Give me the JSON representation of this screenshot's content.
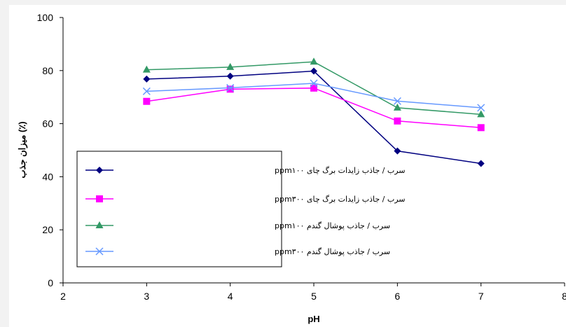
{
  "chart_data": {
    "type": "line",
    "title": "",
    "xlabel": "pH",
    "ylabel": "میزان جذب (٪)",
    "xlim": [
      2,
      8
    ],
    "ylim": [
      0,
      100
    ],
    "x_ticks": [
      2,
      3,
      4,
      5,
      6,
      7,
      8
    ],
    "y_ticks": [
      0,
      20,
      40,
      60,
      80,
      100
    ],
    "grid": false,
    "legend_position": "left-bottom",
    "x": [
      3,
      4,
      5,
      6,
      7
    ],
    "series": [
      {
        "name": "سرب / جاذب زایدات برگ چای ppm۱۰۰",
        "values": [
          76.8,
          77.9,
          79.8,
          49.7,
          45.0
        ],
        "color": "#000080",
        "marker": "diamond"
      },
      {
        "name": "سرب / جاذب زایدات برگ چای ppm۳۰۰",
        "values": [
          68.4,
          73.0,
          73.4,
          61.0,
          58.5
        ],
        "color": "#ff00ff",
        "marker": "square"
      },
      {
        "name": "سرب / جاذب پوشال گندم ppm۱۰۰",
        "values": [
          80.3,
          81.3,
          83.3,
          66.0,
          63.5
        ],
        "color": "#339966",
        "marker": "triangle"
      },
      {
        "name": "سرب / جاذب پوشال گندم ppm۳۰۰",
        "values": [
          72.2,
          73.5,
          75.2,
          68.5,
          66.0
        ],
        "color": "#6699ff",
        "marker": "x"
      }
    ]
  }
}
